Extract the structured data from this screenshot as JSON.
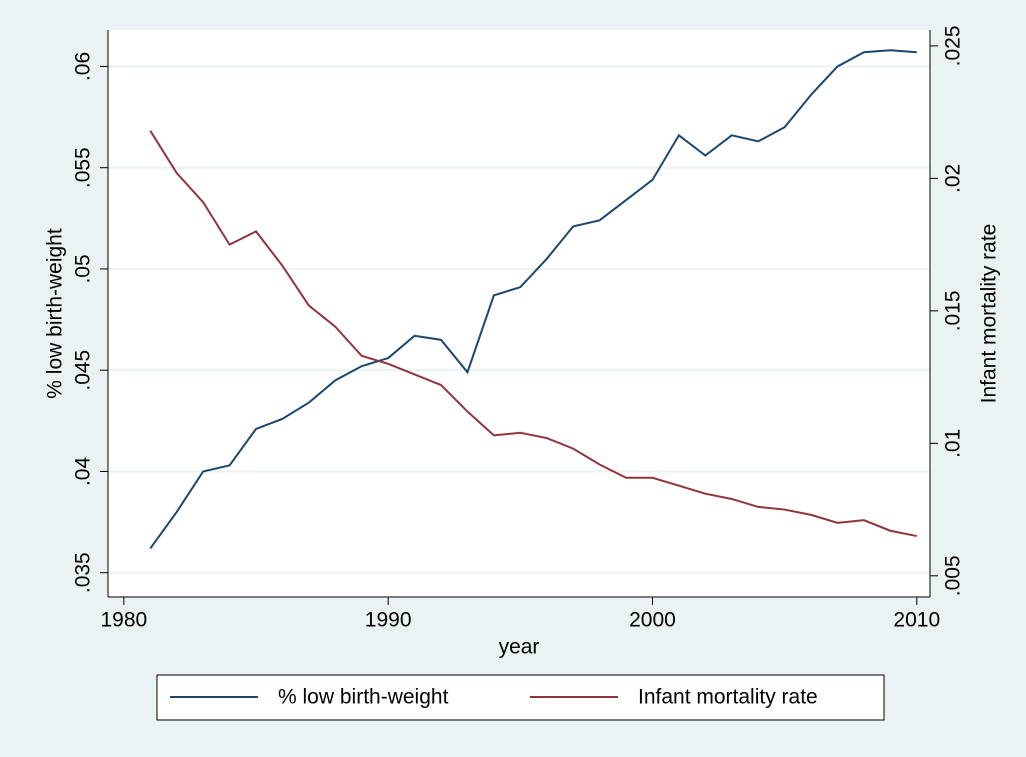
{
  "chart_data": {
    "type": "line",
    "x_label": "year",
    "y_label": "% low birth-weight",
    "y2_label": "Infant mortality rate",
    "x": [
      1981,
      1982,
      1983,
      1984,
      1985,
      1986,
      1987,
      1988,
      1989,
      1990,
      1991,
      1992,
      1993,
      1994,
      1995,
      1996,
      1997,
      1998,
      1999,
      2000,
      2001,
      2002,
      2003,
      2004,
      2005,
      2006,
      2007,
      2008,
      2009,
      2010
    ],
    "series": [
      {
        "name": "% low birth-weight",
        "color": "#1a476f",
        "values": [
          0.0362,
          0.038,
          0.04,
          0.0403,
          0.0421,
          0.0426,
          0.0434,
          0.0445,
          0.0452,
          0.0456,
          0.0467,
          0.0465,
          0.0449,
          0.0487,
          0.0491,
          0.0505,
          0.0521,
          0.0524,
          0.0534,
          0.0544,
          0.0566,
          0.0556,
          0.0566,
          0.0563,
          0.057,
          0.0586,
          0.06,
          0.0607,
          0.0608,
          0.0607
        ]
      },
      {
        "name": "Infant mortality rate",
        "color": "#90353b",
        "axis": "y2",
        "values": [
          0.0218,
          0.0202,
          0.0191,
          0.0175,
          0.018,
          0.0167,
          0.0152,
          0.0144,
          0.0133,
          0.013,
          0.0126,
          0.0122,
          0.0112,
          0.0103,
          0.0104,
          0.0102,
          0.0098,
          0.0092,
          0.0087,
          0.0087,
          0.0084,
          0.0081,
          0.0079,
          0.0076,
          0.0075,
          0.0073,
          0.007,
          0.0071,
          0.0067,
          0.0065
        ]
      }
    ],
    "xlim": [
      1979.4,
      2010.5
    ],
    "xticks": [
      1980,
      1990,
      2000,
      2010
    ],
    "ylim": [
      0.0338,
      0.0618
    ],
    "yticks": [
      {
        "value": 0.035,
        "label": ".035"
      },
      {
        "value": 0.04,
        "label": ".04"
      },
      {
        "value": 0.045,
        "label": ".045"
      },
      {
        "value": 0.05,
        "label": ".05"
      },
      {
        "value": 0.055,
        "label": ".055"
      },
      {
        "value": 0.06,
        "label": ".06"
      }
    ],
    "y2lim": [
      0.0042,
      0.0256
    ],
    "y2ticks": [
      {
        "value": 0.005,
        "label": ".005"
      },
      {
        "value": 0.01,
        "label": ".01"
      },
      {
        "value": 0.015,
        "label": ".015"
      },
      {
        "value": 0.02,
        "label": ".02"
      },
      {
        "value": 0.025,
        "label": ".025"
      }
    ],
    "grid": true,
    "legend": "bottom"
  }
}
